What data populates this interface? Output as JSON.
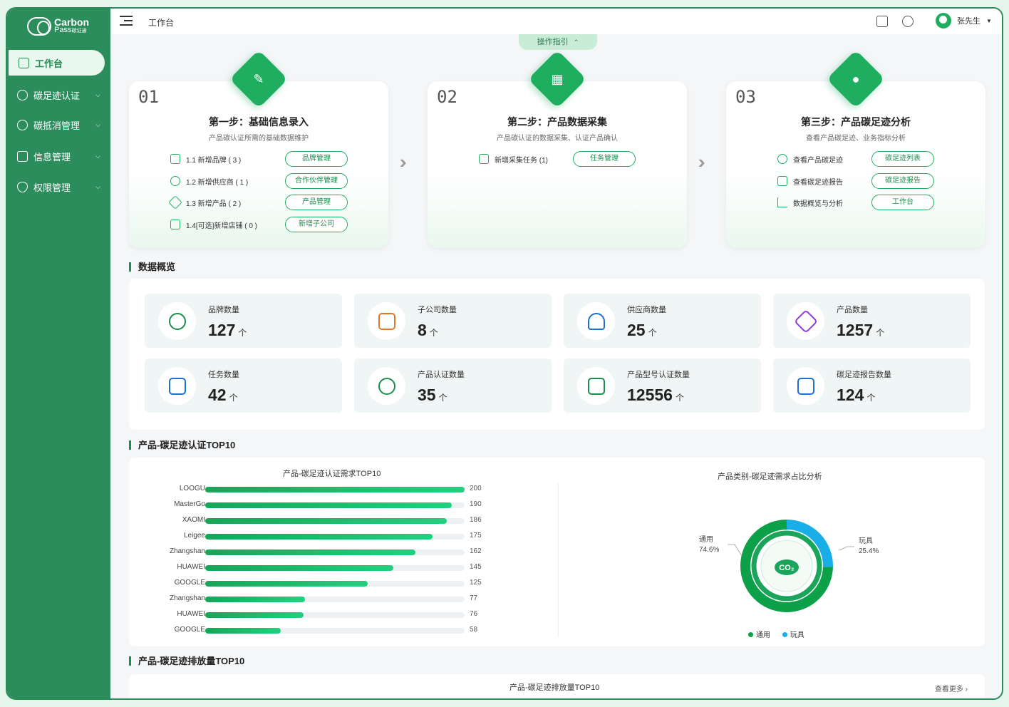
{
  "app": {
    "logo_line1": "Carbon",
    "logo_line2": "Pass",
    "logo_line2b": "碳证通"
  },
  "sidebar": {
    "items": [
      {
        "label": "工作台"
      },
      {
        "label": "碳足迹认证"
      },
      {
        "label": "碳抵消管理"
      },
      {
        "label": "信息管理"
      },
      {
        "label": "权限管理"
      }
    ]
  },
  "header": {
    "breadcrumb": "工作台",
    "user_name": "张先生"
  },
  "guide": {
    "label": "操作指引"
  },
  "steps": [
    {
      "num": "01",
      "title": "第一步：基础信息录入",
      "subtitle": "产品碳认证所需的基础数据维护",
      "rows": [
        {
          "text": "1.1 新增品牌 ( 3 )",
          "button": "品牌管理"
        },
        {
          "text": "1.2 新增供应商 ( 1 )",
          "button": "合作伙伴管理"
        },
        {
          "text": "1.3 新增产品 ( 2 )",
          "button": "产品管理"
        },
        {
          "text": "1.4[可选]新增店铺 ( 0 )",
          "button": "新增子公司"
        }
      ]
    },
    {
      "num": "02",
      "title": "第二步：产品数据采集",
      "subtitle": "产品碳认证的数据采集、认证产品确认",
      "rows": [
        {
          "text": "新增采集任务 (1)",
          "button": "任务管理"
        }
      ]
    },
    {
      "num": "03",
      "title": "第三步：产品碳足迹分析",
      "subtitle": "查看产品碳足迹、业务指标分析",
      "rows": [
        {
          "text": "查看产品碳足迹",
          "button": "碳足迹列表"
        },
        {
          "text": "查看碳足迹报告",
          "button": "碳足迹报告"
        },
        {
          "text": "数据概览与分析",
          "button": "工作台"
        }
      ]
    }
  ],
  "overview": {
    "title": "数据概览",
    "unit": "个",
    "stats": [
      {
        "label": "品牌数量",
        "value": "127",
        "color": "#1d8c4d"
      },
      {
        "label": "子公司数量",
        "value": "8",
        "color": "#e0792a"
      },
      {
        "label": "供应商数量",
        "value": "25",
        "color": "#1f6fd1"
      },
      {
        "label": "产品数量",
        "value": "1257",
        "color": "#8e3ad8"
      },
      {
        "label": "任务数量",
        "value": "42",
        "color": "#1f6fd1"
      },
      {
        "label": "产品认证数量",
        "value": "35",
        "color": "#1d8c4d"
      },
      {
        "label": "产品型号认证数量",
        "value": "12556",
        "color": "#1d8c4d"
      },
      {
        "label": "碳足迹报告数量",
        "value": "124",
        "color": "#1f6fd1"
      }
    ]
  },
  "top10": {
    "title": "产品-碳足迹认证TOP10"
  },
  "chart_data": [
    {
      "type": "bar",
      "title": "产品-碳足迹认证需求TOP10",
      "categories": [
        "LOOGU",
        "MasterGo",
        "XAOMI",
        "Leigee",
        "Zhangshan",
        "HUAWEI",
        "GOOGLE",
        "Zhangshan",
        "HUAWEI",
        "GOOGLE"
      ],
      "values": [
        200,
        190,
        186,
        175,
        162,
        145,
        125,
        77,
        76,
        58
      ],
      "xlim": [
        0,
        200
      ],
      "orientation": "horizontal"
    },
    {
      "type": "pie",
      "title": "产品类别-碳足迹需求占比分析",
      "categories": [
        "通用",
        "玩具"
      ],
      "values": [
        74.6,
        25.4
      ],
      "labels": [
        "74.6%",
        "25.4%"
      ],
      "colors": [
        "#0ca049",
        "#1aaee8"
      ],
      "center_label": "CO₂"
    }
  ],
  "emission": {
    "title": "产品-碳足迹排放量TOP10",
    "chart_title": "产品-碳足迹排放量TOP10",
    "more": "查看更多 ›"
  }
}
